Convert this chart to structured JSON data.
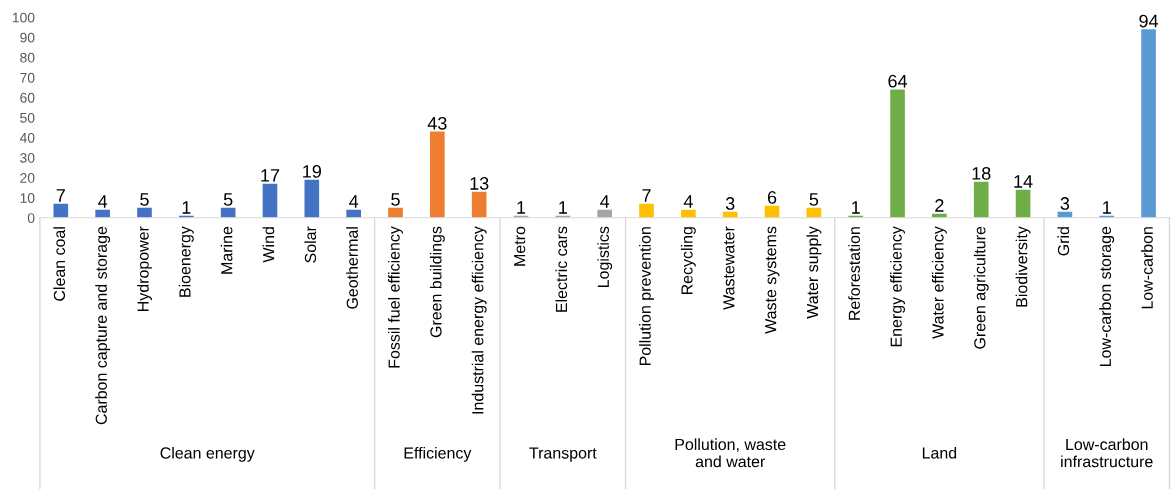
{
  "chart_data": {
    "type": "bar",
    "categories": [
      "Clean coal",
      "Carbon capture and storage",
      "Hydropower",
      "Bioenergy",
      "Marine",
      "Wind",
      "Solar",
      "Geothermal",
      "Fossil fuel efficiency",
      "Green buildings",
      "Industrial energy efficiency",
      "Metro",
      "Electric cars",
      "Logistics",
      "Pollution prevention",
      "Recycling",
      "Wastewater",
      "Waste systems",
      "Water supply",
      "Reforestation",
      "Energy efficiency",
      "Water efficiency",
      "Green agriculture",
      "Biodiversity",
      "Grid",
      "Low-carbon storage",
      "Low-carbon"
    ],
    "series": [
      {
        "color": "#4472c4",
        "values": [
          7,
          4,
          5,
          1,
          5,
          17,
          19,
          4,
          null,
          null,
          null,
          null,
          null,
          null,
          null,
          null,
          null,
          null,
          null,
          null,
          null,
          null,
          null,
          null,
          null,
          null,
          null
        ]
      },
      {
        "color": "#ed7d31",
        "values": [
          null,
          null,
          null,
          null,
          null,
          null,
          null,
          null,
          5,
          43,
          13,
          null,
          null,
          null,
          null,
          null,
          null,
          null,
          null,
          null,
          null,
          null,
          null,
          null,
          null,
          null,
          null
        ]
      },
      {
        "color": "#a5a5a5",
        "values": [
          null,
          null,
          null,
          null,
          null,
          null,
          null,
          null,
          null,
          null,
          null,
          1,
          1,
          4,
          null,
          null,
          null,
          null,
          null,
          null,
          null,
          null,
          null,
          null,
          null,
          null,
          null
        ]
      },
      {
        "color": "#ffc000",
        "values": [
          null,
          null,
          null,
          null,
          null,
          null,
          null,
          null,
          null,
          null,
          null,
          null,
          null,
          null,
          7,
          4,
          3,
          6,
          5,
          null,
          null,
          null,
          null,
          null,
          null,
          null,
          null
        ]
      },
      {
        "color": "#70ad47",
        "values": [
          null,
          null,
          null,
          null,
          null,
          null,
          null,
          null,
          null,
          null,
          null,
          null,
          null,
          null,
          null,
          null,
          null,
          null,
          null,
          1,
          64,
          2,
          18,
          14,
          null,
          null,
          null
        ]
      },
      {
        "color": "#5b9bd5",
        "values": [
          null,
          null,
          null,
          null,
          null,
          null,
          null,
          null,
          null,
          null,
          null,
          null,
          null,
          null,
          null,
          null,
          null,
          null,
          null,
          null,
          null,
          null,
          null,
          null,
          3,
          1,
          94
        ]
      }
    ],
    "ylim": [
      0,
      100
    ],
    "yticks": [
      0,
      10,
      20,
      30,
      40,
      50,
      60,
      70,
      80,
      90,
      100
    ],
    "annotations": [
      "Clean energy",
      "Efficiency",
      "Transport",
      "Pollution, waste\nand water",
      "Land",
      "Low-carbon\ninfrastructure"
    ],
    "data_labels": true,
    "grid": false,
    "legend": false
  }
}
